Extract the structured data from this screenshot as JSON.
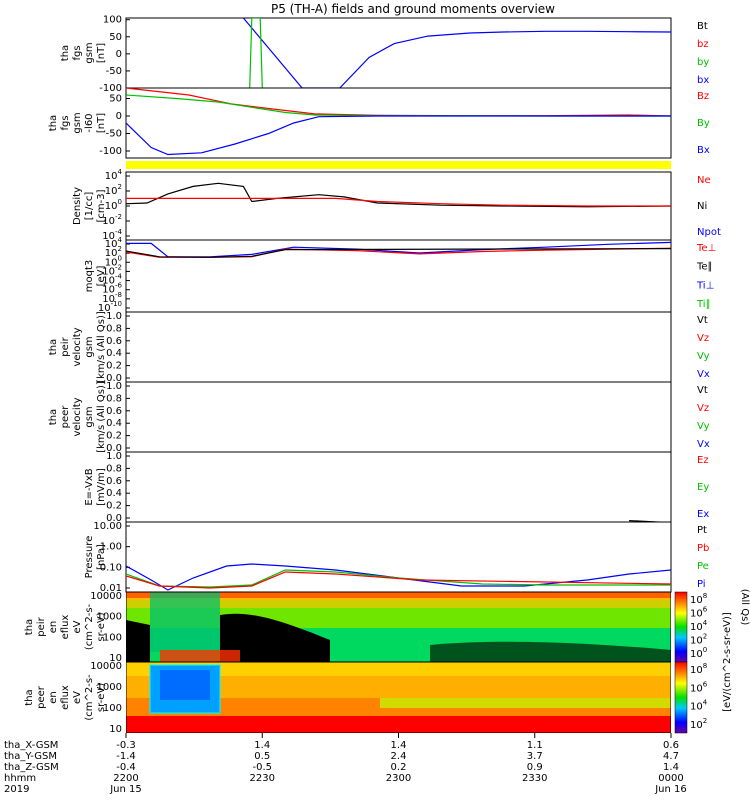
{
  "title": "P5 (TH-A) fields and ground moments overview",
  "chart_data": [
    {
      "id": "fgs_raw",
      "type": "line",
      "ylabel": [
        "tha",
        "fgs",
        "gsm",
        "[nT]"
      ],
      "yticks": [
        -100,
        -50,
        0,
        50,
        100
      ],
      "ylim": [
        -100,
        105
      ],
      "legend": [
        {
          "label": "Bt",
          "color": "#000000"
        },
        {
          "label": "bz",
          "color": "#ff0000"
        },
        {
          "label": "by",
          "color": "#00c000"
        },
        {
          "label": "bx",
          "color": "#0000ff"
        }
      ],
      "series": [
        {
          "name": "bx",
          "color": "#0000ff",
          "points": [
            [
              -2,
              105
            ],
            [
              12,
              -100
            ],
            [
              21,
              -100
            ],
            [
              28,
              -10
            ],
            [
              34,
              30
            ],
            [
              42,
              52
            ],
            [
              52,
              61
            ],
            [
              60,
              64
            ],
            [
              70,
              66
            ],
            [
              80,
              66
            ],
            [
              90,
              65
            ],
            [
              100,
              64
            ]
          ]
        },
        {
          "name": "by",
          "color": "#00c000",
          "points": [
            [
              -0.5,
              -100
            ],
            [
              0,
              105
            ],
            [
              2,
              105
            ],
            [
              2.5,
              -100
            ]
          ]
        }
      ]
    },
    {
      "id": "fgs_despun",
      "type": "line",
      "ylabel": [
        "tha",
        "fgs",
        "gsm",
        "-l60",
        "[nT]"
      ],
      "yticks": [
        -100,
        -50,
        0,
        50
      ],
      "ylim": [
        -120,
        80
      ],
      "legend": [
        {
          "label": "Bz",
          "color": "#ff0000"
        },
        {
          "label": "By",
          "color": "#00c000"
        },
        {
          "label": "Bx",
          "color": "#0000ff"
        }
      ],
      "series": [
        {
          "name": "Bz",
          "color": "#ff0000",
          "points": [
            [
              -30,
              80
            ],
            [
              -15,
              60
            ],
            [
              -5,
              35
            ],
            [
              5,
              20
            ],
            [
              15,
              6
            ],
            [
              30,
              2
            ],
            [
              50,
              1
            ],
            [
              70,
              1
            ],
            [
              90,
              3
            ],
            [
              100,
              0
            ]
          ]
        },
        {
          "name": "By",
          "color": "#00c000",
          "points": [
            [
              -30,
              60
            ],
            [
              -18,
              50
            ],
            [
              -8,
              40
            ],
            [
              0,
              25
            ],
            [
              8,
              10
            ],
            [
              15,
              3
            ],
            [
              30,
              1
            ],
            [
              50,
              1
            ],
            [
              70,
              0
            ],
            [
              100,
              0
            ]
          ]
        },
        {
          "name": "Bx",
          "color": "#0000ff",
          "points": [
            [
              -30,
              -20
            ],
            [
              -24,
              -90
            ],
            [
              -20,
              -110
            ],
            [
              -12,
              -105
            ],
            [
              -4,
              -80
            ],
            [
              4,
              -50
            ],
            [
              10,
              -20
            ],
            [
              16,
              -2
            ],
            [
              30,
              0
            ],
            [
              60,
              0
            ],
            [
              100,
              0
            ]
          ]
        }
      ]
    },
    {
      "id": "density",
      "type": "line",
      "yscale": "log",
      "ylabel": [
        "Density",
        "[1/cc]",
        "[cm-3]"
      ],
      "ytick_labels": [
        "10^4",
        "10^2",
        "10^0",
        "10^-2",
        "10^-4"
      ],
      "ylim_log": [
        -4.5,
        4.5
      ],
      "legend": [
        {
          "label": "Ne",
          "color": "#ff0000"
        },
        {
          "label": "Ni",
          "color": "#000000"
        },
        {
          "label": "Npot",
          "color": "#0000ff"
        }
      ],
      "series": [
        {
          "name": "Ni",
          "color": "#000000",
          "points": [
            [
              -30,
              0.3
            ],
            [
              -25,
              0.4
            ],
            [
              -20,
              1.6
            ],
            [
              -14,
              2.6
            ],
            [
              -8,
              3.0
            ],
            [
              -2,
              2.6
            ],
            [
              0,
              0.6
            ],
            [
              6,
              1.0
            ],
            [
              16,
              1.5
            ],
            [
              22,
              1.2
            ],
            [
              30,
              0.4
            ],
            [
              45,
              0.1
            ],
            [
              60,
              0
            ],
            [
              80,
              -0.1
            ],
            [
              100,
              0
            ]
          ]
        },
        {
          "name": "Ne",
          "color": "#ff0000",
          "points": [
            [
              -30,
              1.0
            ],
            [
              0,
              1.0
            ],
            [
              20,
              1.0
            ],
            [
              30,
              0.6
            ],
            [
              45,
              0.3
            ],
            [
              60,
              0.1
            ],
            [
              80,
              0
            ],
            [
              100,
              0
            ]
          ]
        }
      ]
    },
    {
      "id": "temperature",
      "type": "line",
      "yscale": "log",
      "ylabel": [
        "moqt3",
        "[eV]"
      ],
      "ytick_labels": [
        "10^4",
        "10^2",
        "10^0",
        "10^-2",
        "10^-4",
        "10^-6",
        "10^-8",
        "10^-10"
      ],
      "ylim_log": [
        -10.5,
        4.5
      ],
      "legend": [
        {
          "label": "Te⊥",
          "color": "#ff0000"
        },
        {
          "label": "Te∥",
          "color": "#000000"
        },
        {
          "label": "Ti⊥",
          "color": "#0000ff"
        },
        {
          "label": "Ti∥",
          "color": "#00c000"
        }
      ],
      "series": [
        {
          "name": "Ti⊥",
          "color": "#0000ff",
          "points": [
            [
              -30,
              3.8
            ],
            [
              -24,
              3.8
            ],
            [
              -20,
              1.0
            ],
            [
              -10,
              1.0
            ],
            [
              0,
              1.5
            ],
            [
              10,
              3.0
            ],
            [
              25,
              2.6
            ],
            [
              40,
              1.8
            ],
            [
              55,
              2.5
            ],
            [
              70,
              3.0
            ],
            [
              85,
              3.6
            ],
            [
              100,
              4.0
            ]
          ]
        },
        {
          "name": "Te⊥",
          "color": "#ff0000",
          "points": [
            [
              -30,
              2.0
            ],
            [
              -22,
              0.9
            ],
            [
              -10,
              0.9
            ],
            [
              0,
              1.0
            ],
            [
              8,
              2.6
            ],
            [
              25,
              2.3
            ],
            [
              40,
              1.6
            ],
            [
              55,
              2.1
            ],
            [
              70,
              2.4
            ],
            [
              100,
              2.8
            ]
          ]
        },
        {
          "name": "Te∥",
          "color": "#000000",
          "points": [
            [
              -30,
              2.2
            ],
            [
              -22,
              1.0
            ],
            [
              -10,
              0.9
            ],
            [
              0,
              1.1
            ],
            [
              8,
              2.5
            ],
            [
              100,
              2.7
            ]
          ]
        }
      ]
    },
    {
      "id": "peir_velocity",
      "type": "line",
      "ylabel": [
        "tha",
        "peir",
        "velocity",
        "gsm",
        "[km/s (All Qs)]"
      ],
      "ytick_labels": [
        "1.0",
        "0.8",
        "0.6",
        "0.4",
        "0.2",
        "0.0"
      ],
      "ylim": [
        0,
        1
      ],
      "legend": [
        {
          "label": "Vt",
          "color": "#000000"
        },
        {
          "label": "Vz",
          "color": "#ff0000"
        },
        {
          "label": "Vy",
          "color": "#00c000"
        },
        {
          "label": "Vx",
          "color": "#0000ff"
        }
      ],
      "series": []
    },
    {
      "id": "peer_velocity",
      "type": "line",
      "ylabel": [
        "tha",
        "peer",
        "velocity",
        "gsm",
        "[km/s (All Qs)]"
      ],
      "ytick_labels": [
        "1.0",
        "0.8",
        "0.6",
        "0.4",
        "0.2",
        "0.0"
      ],
      "ylim": [
        0,
        1
      ],
      "legend": [
        {
          "label": "Vt",
          "color": "#000000"
        },
        {
          "label": "Vz",
          "color": "#ff0000"
        },
        {
          "label": "Vy",
          "color": "#00c000"
        },
        {
          "label": "Vx",
          "color": "#0000ff"
        }
      ],
      "series": []
    },
    {
      "id": "efield",
      "type": "line",
      "ylabel": [
        "E=-VxB",
        "[mV/m]"
      ],
      "ytick_labels": [
        "1.0",
        "0.8",
        "0.6",
        "0.4",
        "0.2",
        "0.0"
      ],
      "ylim": [
        0,
        1
      ],
      "legend": [
        {
          "label": "Ez",
          "color": "#ff0000"
        },
        {
          "label": "Ey",
          "color": "#00c000"
        },
        {
          "label": "Ex",
          "color": "#0000ff"
        }
      ],
      "series": [
        {
          "name": "Pt-edge",
          "color": "#000000",
          "points": [
            [
              90,
              0.02
            ],
            [
              100,
              -0.01
            ]
          ]
        }
      ]
    },
    {
      "id": "pressure",
      "type": "line",
      "yscale": "log",
      "ylabel": [
        "Pressure",
        "[nPa]"
      ],
      "ytick_labels": [
        "10.00",
        "1.00",
        "0.10",
        "0.01"
      ],
      "ylim_log": [
        -2.2,
        1.3
      ],
      "side_label": "(All Qs)",
      "legend": [
        {
          "label": "Pt",
          "color": "#000000"
        },
        {
          "label": "Pb",
          "color": "#ff0000"
        },
        {
          "label": "Pe",
          "color": "#00c000"
        },
        {
          "label": "Pi",
          "color": "#0000ff"
        }
      ],
      "series": [
        {
          "name": "Pi",
          "color": "#0000ff",
          "points": [
            [
              -30,
              -0.9
            ],
            [
              -24,
              -1.6
            ],
            [
              -20,
              -2.1
            ],
            [
              -14,
              -1.5
            ],
            [
              -6,
              -0.9
            ],
            [
              0,
              -0.8
            ],
            [
              8,
              -0.9
            ],
            [
              20,
              -1.1
            ],
            [
              35,
              -1.5
            ],
            [
              50,
              -1.9
            ],
            [
              65,
              -1.9
            ],
            [
              80,
              -1.6
            ],
            [
              90,
              -1.3
            ],
            [
              100,
              -1.1
            ]
          ]
        },
        {
          "name": "Pe",
          "color": "#00c000",
          "points": [
            [
              -30,
              -1.3
            ],
            [
              -22,
              -1.9
            ],
            [
              -10,
              -1.95
            ],
            [
              0,
              -1.85
            ],
            [
              8,
              -1.1
            ],
            [
              20,
              -1.2
            ],
            [
              35,
              -1.5
            ],
            [
              55,
              -1.8
            ],
            [
              70,
              -1.85
            ],
            [
              100,
              -1.85
            ]
          ]
        },
        {
          "name": "Pb",
          "color": "#ff0000",
          "points": [
            [
              -30,
              -1.4
            ],
            [
              -22,
              -1.9
            ],
            [
              -10,
              -2.0
            ],
            [
              0,
              -1.9
            ],
            [
              8,
              -1.2
            ],
            [
              20,
              -1.3
            ],
            [
              40,
              -1.6
            ],
            [
              100,
              -1.8
            ]
          ]
        }
      ]
    },
    {
      "id": "peir_spec",
      "type": "heatmap",
      "ylabel": [
        "tha",
        "peir",
        "en",
        "eflux",
        "eV",
        "(cm^2-s-",
        "sr-eV)"
      ],
      "ytick_labels": [
        "10000",
        "1000",
        "100",
        "10"
      ],
      "colorbar_labels": [
        "10^8",
        "10^6",
        "10^4",
        "10^2",
        "10^0"
      ],
      "colorbar_unit": "[eV/(cm^2-s-sr-eV)]"
    },
    {
      "id": "peer_spec",
      "type": "heatmap",
      "ylabel": [
        "tha",
        "peer",
        "en",
        "eflux",
        "eV",
        "(cm^2-s-",
        "sr-eV)"
      ],
      "ytick_labels": [
        "10000",
        "1000",
        "100",
        "10"
      ],
      "colorbar_labels": [
        "10^8",
        "10^6",
        "10^4",
        "10^2"
      ],
      "colorbar_unit": "[eV/(cm^2-s-sr-eV)]"
    }
  ],
  "x_axis": {
    "row_labels": [
      "tha_X-GSM",
      "tha_Y-GSM",
      "tha_Z-GSM",
      "hhmm",
      "2019"
    ],
    "ticks": [
      {
        "values": [
          "-0.3",
          "-1.4",
          "-0.4",
          "2200",
          "Jun 15"
        ]
      },
      {
        "values": [
          "1.4",
          "0.5",
          "-0.5",
          "2230",
          ""
        ]
      },
      {
        "values": [
          "1.4",
          "2.4",
          "0.2",
          "2300",
          ""
        ]
      },
      {
        "values": [
          "1.1",
          "3.7",
          "0.9",
          "2330",
          ""
        ]
      },
      {
        "values": [
          "0.6",
          "4.7",
          "1.4",
          "0000",
          "Jun 16"
        ]
      }
    ]
  }
}
